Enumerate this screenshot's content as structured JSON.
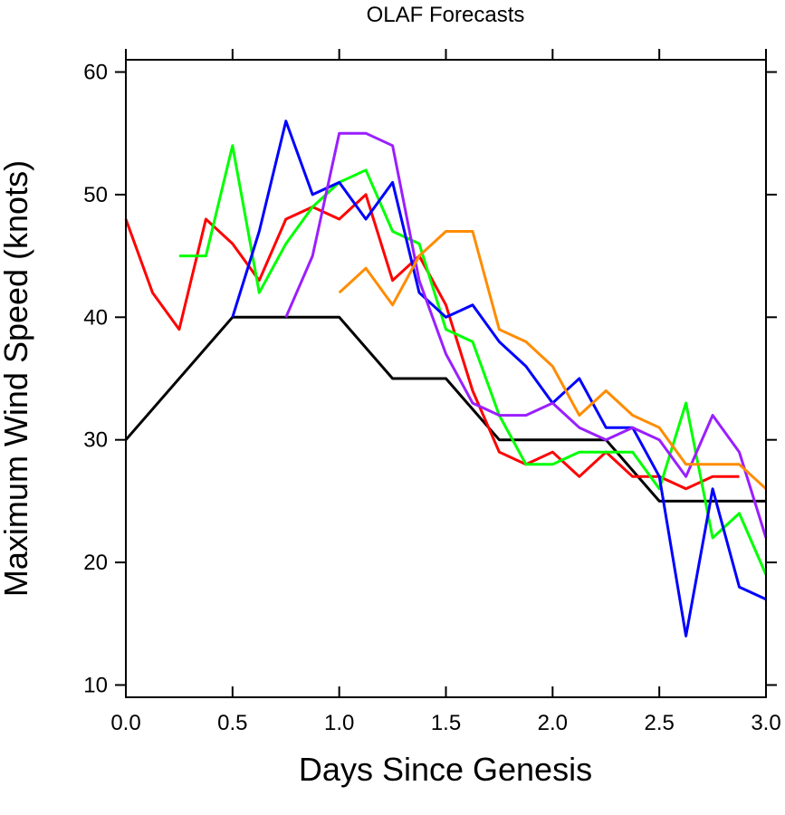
{
  "chart_data": {
    "type": "line",
    "title": "OLAF Forecasts",
    "xlabel": "Days Since Genesis",
    "ylabel": "Maximum Wind Speed (knots)",
    "xlim": [
      0,
      3
    ],
    "ylim": [
      9,
      61
    ],
    "xticks": [
      "0.0",
      "0.5",
      "1.0",
      "1.5",
      "2.0",
      "2.5",
      "3.0"
    ],
    "yticks": [
      "10",
      "20",
      "30",
      "40",
      "50",
      "60"
    ],
    "grid": false,
    "series": [
      {
        "color": "#000000",
        "x": [
          0,
          0.5,
          1.0,
          1.25,
          1.5,
          1.75,
          2.0,
          2.25,
          2.5,
          2.75,
          3.0
        ],
        "y": [
          30,
          40,
          40,
          35,
          35,
          30,
          30,
          30,
          25,
          25,
          25
        ]
      },
      {
        "color": "#ff0000",
        "x": [
          0,
          0.125,
          0.25,
          0.375,
          0.5,
          0.625,
          0.75,
          0.875,
          1.0,
          1.125,
          1.25,
          1.375,
          1.5,
          1.625,
          1.75,
          1.875,
          2.0,
          2.125,
          2.25,
          2.375,
          2.5,
          2.625,
          2.75,
          2.875
        ],
        "y": [
          48,
          42,
          39,
          48,
          46,
          43,
          48,
          49,
          48,
          50,
          43,
          45,
          41,
          34,
          29,
          28,
          29,
          27,
          29,
          27,
          27,
          26,
          27,
          27
        ]
      },
      {
        "color": "#00ff00",
        "x": [
          0.25,
          0.375,
          0.5,
          0.625,
          0.75,
          0.875,
          1.0,
          1.125,
          1.25,
          1.375,
          1.5,
          1.625,
          1.75,
          1.875,
          2.0,
          2.125,
          2.25,
          2.375,
          2.5,
          2.625,
          2.75,
          2.875,
          3.0
        ],
        "y": [
          45,
          45,
          54,
          42,
          46,
          49,
          51,
          52,
          47,
          46,
          39,
          38,
          32,
          28,
          28,
          29,
          29,
          29,
          26,
          33,
          22,
          24,
          19
        ]
      },
      {
        "color": "#0000ff",
        "x": [
          0.5,
          0.625,
          0.75,
          0.875,
          1.0,
          1.125,
          1.25,
          1.375,
          1.5,
          1.625,
          1.75,
          1.875,
          2.0,
          2.125,
          2.25,
          2.375,
          2.5,
          2.625,
          2.75,
          2.875,
          3.0
        ],
        "y": [
          40,
          47,
          56,
          50,
          51,
          48,
          51,
          42,
          40,
          41,
          38,
          36,
          33,
          35,
          31,
          31,
          27,
          14,
          26,
          18,
          17
        ]
      },
      {
        "color": "#9a1fff",
        "x": [
          0.75,
          0.875,
          1.0,
          1.125,
          1.25,
          1.375,
          1.5,
          1.625,
          1.75,
          1.875,
          2.0,
          2.125,
          2.25,
          2.375,
          2.5,
          2.625,
          2.75,
          2.875,
          3.0
        ],
        "y": [
          40,
          45,
          55,
          55,
          54,
          43,
          37,
          33,
          32,
          32,
          33,
          31,
          30,
          31,
          30,
          27,
          32,
          29,
          22
        ]
      },
      {
        "color": "#ff8c00",
        "x": [
          1.0,
          1.125,
          1.25,
          1.375,
          1.5,
          1.625,
          1.75,
          1.875,
          2.0,
          2.125,
          2.25,
          2.375,
          2.5,
          2.625,
          2.75,
          2.875,
          3.0
        ],
        "y": [
          42,
          44,
          41,
          45,
          47,
          47,
          39,
          38,
          36,
          32,
          34,
          32,
          31,
          28,
          28,
          28,
          26
        ]
      }
    ]
  }
}
